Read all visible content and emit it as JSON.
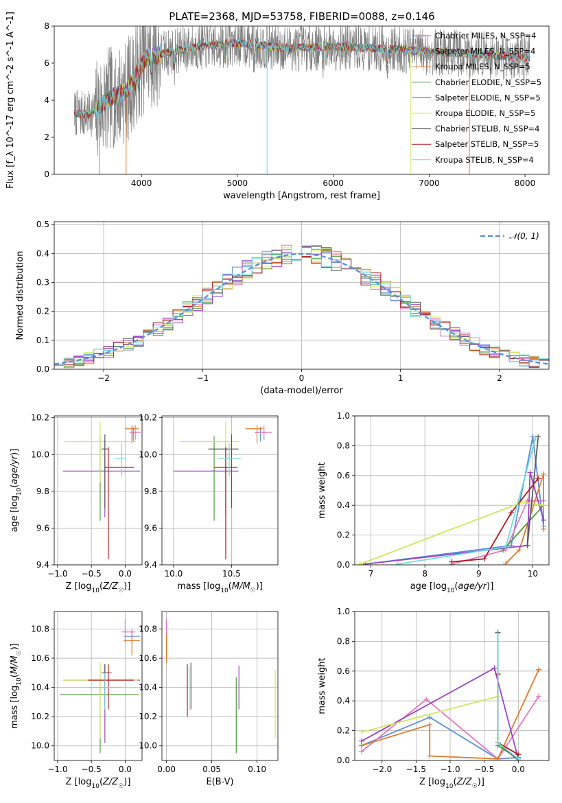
{
  "figure_title": "PLATE=2368, MJD=53758, FIBERID=0088, z=0.146",
  "colors": {
    "Chabrier MILES": "#5b8fd9",
    "Salpeter MILES": "#e377c2",
    "Kroupa MILES": "#e07b2a",
    "Chabrier ELODIE": "#4c9a3b",
    "Salpeter ELODIE": "#9b44c2",
    "Kroupa ELODIE": "#cfe85a",
    "Chabrier STELIB": "#595959",
    "Salpeter STELIB": "#b3151b",
    "Kroupa STELIB": "#6fd8dc"
  },
  "chart_data": [
    {
      "id": "spectrum",
      "type": "line",
      "title": "PLATE=2368, MJD=53758, FIBERID=0088, z=0.146",
      "xlabel": "wavelength [Angstrom, rest frame]",
      "ylabel": "Flux [f_λ 10^-17 erg cm^-2 s^-1 A^-1]",
      "xlim": [
        3090,
        8250
      ],
      "ylim": [
        0,
        8
      ],
      "xticks": [
        4000,
        5000,
        6000,
        7000,
        8000
      ],
      "yticks": [
        0,
        2,
        4,
        6,
        8
      ],
      "data_color": "#7f7f7f",
      "continuum": [
        [
          3300,
          3.3
        ],
        [
          3450,
          3.2
        ],
        [
          3550,
          3.6
        ],
        [
          3700,
          4.2
        ],
        [
          3850,
          4.5
        ],
        [
          3950,
          5.5
        ],
        [
          4050,
          6.3
        ],
        [
          4300,
          6.6
        ],
        [
          4600,
          6.9
        ],
        [
          5000,
          7.1
        ],
        [
          5500,
          6.8
        ],
        [
          6000,
          6.9
        ],
        [
          6500,
          6.8
        ],
        [
          7000,
          6.6
        ],
        [
          7500,
          6.5
        ],
        [
          8000,
          6.3
        ]
      ],
      "legend": [
        {
          "label": "Chabrier MILES, N_SSP=4",
          "model": "Chabrier MILES"
        },
        {
          "label": "Salpeter MILES, N_SSP=4",
          "model": "Salpeter MILES"
        },
        {
          "label": "Kroupa MILES, N_SSP=5",
          "model": "Kroupa MILES"
        },
        {
          "label": "Chabrier ELODIE, N_SSP=5",
          "model": "Chabrier ELODIE"
        },
        {
          "label": "Salpeter ELODIE, N_SSP=5",
          "model": "Salpeter ELODIE"
        },
        {
          "label": "Kroupa ELODIE, N_SSP=5",
          "model": "Kroupa ELODIE"
        },
        {
          "label": "Chabrier STELIB, N_SSP=4",
          "model": "Chabrier STELIB"
        },
        {
          "label": "Salpeter STELIB, N_SSP=5",
          "model": "Salpeter STELIB"
        },
        {
          "label": "Kroupa STELIB, N_SSP=4",
          "model": "Kroupa STELIB"
        }
      ],
      "legend_position": "right"
    },
    {
      "id": "residuals",
      "type": "line",
      "xlabel": "(data-model)/error",
      "ylabel": "Normed distribution",
      "xlim": [
        -2.5,
        2.5
      ],
      "ylim": [
        0,
        0.51
      ],
      "xticks": [
        -2,
        -1,
        0,
        1,
        2
      ],
      "yticks": [
        0.0,
        0.1,
        0.2,
        0.3,
        0.4,
        0.5
      ],
      "bin_width": 0.1,
      "reference_curve": {
        "label": "𝒩(0, 1)",
        "color": "#5b8fd9",
        "style": "dashed"
      },
      "legend_position": "top-right",
      "grid": true
    },
    {
      "id": "age_vs_Z",
      "type": "scatter",
      "xlabel": "Z [log10(Z/Z☉)]",
      "ylabel": "age [log10(age/yr)]",
      "xlim": [
        -1.05,
        0.25
      ],
      "ylim": [
        9.4,
        10.21
      ],
      "xticks": [
        -1.0,
        -0.5,
        0.0
      ],
      "yticks": [
        9.4,
        9.6,
        9.8,
        10.0,
        10.2
      ],
      "grid": true,
      "error_crosses": [
        {
          "model": "Chabrier MILES",
          "x": 0.12,
          "xerr": [
            0.05,
            0.05
          ],
          "y": 10.12,
          "yerr": [
            0.05,
            0.03
          ]
        },
        {
          "model": "Salpeter MILES",
          "x": 0.15,
          "xerr": [
            0.08,
            0.08
          ],
          "y": 10.12,
          "yerr": [
            0.04,
            0.04
          ]
        },
        {
          "model": "Kroupa MILES",
          "x": 0.1,
          "xerr": [
            0.1,
            0.1
          ],
          "y": 10.14,
          "yerr": [
            0.08,
            0.02
          ]
        },
        {
          "model": "Chabrier ELODIE",
          "x": -0.37,
          "xerr": [
            0.03,
            0.03
          ],
          "y": 9.91,
          "yerr": [
            0.27,
            0.19
          ]
        },
        {
          "model": "Salpeter ELODIE",
          "x": -0.3,
          "xerr": [
            0.62,
            0.52
          ],
          "y": 9.91,
          "yerr": [
            0.25,
            0.17
          ]
        },
        {
          "model": "Kroupa ELODIE",
          "x": -0.37,
          "xerr": [
            0.53,
            0.53
          ],
          "y": 10.07,
          "yerr": [
            0.22,
            0.11
          ]
        },
        {
          "model": "Chabrier STELIB",
          "x": -0.3,
          "xerr": [
            0.05,
            0.05
          ],
          "y": 10.03,
          "yerr": [
            0.32,
            0.08
          ]
        },
        {
          "model": "Salpeter STELIB",
          "x": -0.25,
          "xerr": [
            0.05,
            0.38
          ],
          "y": 9.93,
          "yerr": [
            0.5,
            0.11
          ]
        },
        {
          "model": "Kroupa STELIB",
          "x": -0.05,
          "xerr": [
            0.1,
            0.05
          ],
          "y": 9.98,
          "yerr": [
            0.1,
            0.08
          ]
        }
      ]
    },
    {
      "id": "age_vs_mass",
      "type": "scatter",
      "xlabel": "mass [log10(M/M☉)]",
      "ylabel": "",
      "xlim": [
        9.9,
        10.9
      ],
      "ylim": [
        9.4,
        10.21
      ],
      "xticks": [
        10.0,
        10.5
      ],
      "yticks": [
        9.4,
        9.6,
        9.8,
        10.0,
        10.2
      ],
      "grid": true,
      "error_crosses": [
        {
          "model": "Chabrier MILES",
          "x": 10.75,
          "xerr": [
            0.05,
            0.05
          ],
          "y": 10.12,
          "yerr": [
            0.05,
            0.03
          ]
        },
        {
          "model": "Salpeter MILES",
          "x": 10.78,
          "xerr": [
            0.07,
            0.07
          ],
          "y": 10.12,
          "yerr": [
            0.04,
            0.04
          ]
        },
        {
          "model": "Kroupa MILES",
          "x": 10.72,
          "xerr": [
            0.1,
            0.05
          ],
          "y": 10.14,
          "yerr": [
            0.08,
            0.02
          ]
        },
        {
          "model": "Chabrier ELODIE",
          "x": 10.35,
          "xerr": [
            0.03,
            0.03
          ],
          "y": 9.91,
          "yerr": [
            0.27,
            0.19
          ]
        },
        {
          "model": "Salpeter ELODIE",
          "x": 10.45,
          "xerr": [
            0.45,
            0.11
          ],
          "y": 9.91,
          "yerr": [
            0.25,
            0.17
          ]
        },
        {
          "model": "Kroupa ELODIE",
          "x": 10.45,
          "xerr": [
            0.4,
            0.12
          ],
          "y": 10.07,
          "yerr": [
            0.22,
            0.11
          ]
        },
        {
          "model": "Chabrier STELIB",
          "x": 10.5,
          "xerr": [
            0.2,
            0.06
          ],
          "y": 10.03,
          "yerr": [
            0.32,
            0.08
          ]
        },
        {
          "model": "Salpeter STELIB",
          "x": 10.45,
          "xerr": [
            0.1,
            0.1
          ],
          "y": 9.93,
          "yerr": [
            0.5,
            0.11
          ]
        },
        {
          "model": "Kroupa STELIB",
          "x": 10.48,
          "xerr": [
            0.1,
            0.1
          ],
          "y": 9.98,
          "yerr": [
            0.1,
            0.08
          ]
        }
      ]
    },
    {
      "id": "weight_vs_age",
      "type": "line",
      "xlabel": "age [log10(age/yr)]",
      "ylabel": "mass weight",
      "xlim": [
        6.7,
        10.3
      ],
      "ylim": [
        0,
        1.0
      ],
      "xticks": [
        7,
        8,
        9,
        10
      ],
      "yticks": [
        0.0,
        0.2,
        0.4,
        0.6,
        0.8,
        1.0
      ],
      "grid": true,
      "series": [
        {
          "model": "Chabrier MILES",
          "x": [
            6.9,
            9.6,
            10.0,
            10.2
          ],
          "y": [
            0.005,
            0.13,
            0.86,
            0.26
          ]
        },
        {
          "model": "Salpeter MILES",
          "x": [
            8.5,
            9.5,
            9.9,
            10.2
          ],
          "y": [
            0.005,
            0.1,
            0.43,
            0.43
          ]
        },
        {
          "model": "Kroupa MILES",
          "x": [
            9.5,
            9.75,
            10.2,
            10.2
          ],
          "y": [
            0.01,
            0.1,
            0.61,
            0.24
          ]
        },
        {
          "model": "Chabrier ELODIE",
          "x": [
            9.45,
            10.2
          ],
          "y": [
            0.1,
            0.4
          ]
        },
        {
          "model": "Salpeter ELODIE",
          "x": [
            6.9,
            9.9,
            9.95,
            10.2
          ],
          "y": [
            0.005,
            0.13,
            0.62,
            0.3
          ]
        },
        {
          "model": "Kroupa ELODIE",
          "x": [
            6.8,
            9.8,
            10.2
          ],
          "y": [
            0.005,
            0.42,
            0.4
          ]
        },
        {
          "model": "Chabrier STELIB",
          "x": [
            9.9,
            10.1
          ],
          "y": [
            0.13,
            0.86
          ]
        },
        {
          "model": "Salpeter STELIB",
          "x": [
            8.5,
            9.1,
            9.6,
            10.1
          ],
          "y": [
            0.02,
            0.04,
            0.35,
            0.58
          ]
        },
        {
          "model": "Kroupa STELIB",
          "x": [
            7.5,
            9.5,
            10.05
          ],
          "y": [
            0.005,
            0.12,
            0.85
          ]
        }
      ]
    },
    {
      "id": "mass_vs_Z",
      "type": "scatter",
      "xlabel": "Z [log10(Z/Z☉)]",
      "ylabel": "mass [log10(M/M☉)]",
      "xlim": [
        -1.05,
        0.25
      ],
      "ylim": [
        9.9,
        10.92
      ],
      "xticks": [
        -1.0,
        -0.5,
        0.0
      ],
      "yticks": [
        10.0,
        10.2,
        10.4,
        10.6,
        10.8
      ],
      "grid": true,
      "error_crosses": [
        {
          "model": "Chabrier MILES",
          "x": 0.1,
          "xerr": [
            0.12,
            0.12
          ],
          "y": 10.75,
          "yerr": [
            0.05,
            0.05
          ]
        },
        {
          "model": "Salpeter MILES",
          "x": 0.0,
          "xerr": [
            0.05,
            0.15
          ],
          "y": 10.78,
          "yerr": [
            0.07,
            0.09
          ]
        },
        {
          "model": "Kroupa MILES",
          "x": 0.1,
          "xerr": [
            0.12,
            0.12
          ],
          "y": 10.72,
          "yerr": [
            0.1,
            0.05
          ]
        },
        {
          "model": "Chabrier ELODIE",
          "x": -0.37,
          "xerr": [
            0.6,
            0.57
          ],
          "y": 10.35,
          "yerr": [
            0.4,
            0.1
          ]
        },
        {
          "model": "Salpeter ELODIE",
          "x": -0.3,
          "xerr": [
            0.62,
            0.52
          ],
          "y": 10.45,
          "yerr": [
            0.43,
            0.11
          ]
        },
        {
          "model": "Kroupa ELODIE",
          "x": -0.37,
          "xerr": [
            0.55,
            0.55
          ],
          "y": 10.45,
          "yerr": [
            0.4,
            0.12
          ]
        },
        {
          "model": "Chabrier STELIB",
          "x": -0.3,
          "xerr": [
            0.05,
            0.1
          ],
          "y": 10.5,
          "yerr": [
            0.22,
            0.06
          ]
        },
        {
          "model": "Salpeter STELIB",
          "x": -0.25,
          "xerr": [
            0.3,
            0.38
          ],
          "y": 10.45,
          "yerr": [
            0.2,
            0.11
          ]
        },
        {
          "model": "Kroupa STELIB",
          "x": -0.3,
          "xerr": [
            0.25,
            0.25
          ],
          "y": 10.4,
          "yerr": [
            0.15,
            0.1
          ]
        }
      ]
    },
    {
      "id": "mass_vs_ebv",
      "type": "scatter",
      "xlabel": "E(B-V)",
      "ylabel": "",
      "xlim": [
        -0.005,
        0.123
      ],
      "ylim": [
        9.9,
        10.92
      ],
      "xticks": [
        0.0,
        0.05,
        0.1
      ],
      "yticks": [
        10.0,
        10.2,
        10.4,
        10.6,
        10.8
      ],
      "grid": true,
      "error_bars": [
        {
          "model": "Salpeter MILES",
          "x": 0.0,
          "y": 10.78,
          "yerr": [
            0.07,
            0.09
          ]
        },
        {
          "model": "Kroupa MILES",
          "x": 0.0,
          "y": 10.72,
          "yerr": [
            0.15,
            0.05
          ]
        },
        {
          "model": "Chabrier ELODIE",
          "x": 0.077,
          "y": 10.35,
          "yerr": [
            0.4,
            0.12
          ]
        },
        {
          "model": "Salpeter ELODIE",
          "x": 0.08,
          "y": 10.45,
          "yerr": [
            0.2,
            0.1
          ]
        },
        {
          "model": "Kroupa ELODIE",
          "x": 0.12,
          "y": 10.3,
          "yerr": [
            0.25,
            0.22
          ]
        },
        {
          "model": "Chabrier STELIB",
          "x": 0.027,
          "y": 10.45,
          "yerr": [
            0.2,
            0.12
          ]
        },
        {
          "model": "Salpeter STELIB",
          "x": 0.023,
          "y": 10.4,
          "yerr": [
            0.2,
            0.16
          ]
        },
        {
          "model": "Kroupa STELIB",
          "x": 0.025,
          "y": 10.42,
          "yerr": [
            0.18,
            0.12
          ]
        }
      ]
    },
    {
      "id": "weight_vs_Z",
      "type": "line",
      "xlabel": "Z [log10(Z/Z☉)]",
      "ylabel": "mass weight",
      "xlim": [
        -2.4,
        0.45
      ],
      "ylim": [
        0,
        1.0
      ],
      "xticks": [
        -2.0,
        -1.5,
        -1.0,
        -0.5,
        0.0
      ],
      "yticks": [
        0.0,
        0.2,
        0.4,
        0.6,
        0.8,
        1.0
      ],
      "grid": true,
      "series": [
        {
          "model": "Chabrier MILES",
          "x": [
            -2.3,
            -1.3,
            -0.3,
            0.0
          ],
          "y": [
            0.1,
            0.29,
            0.01,
            0.02
          ]
        },
        {
          "model": "Salpeter MILES",
          "x": [
            -2.3,
            -1.35,
            -0.3,
            0.3
          ],
          "y": [
            0.06,
            0.41,
            0.01,
            0.43
          ]
        },
        {
          "model": "Kroupa MILES",
          "x": [
            -2.3,
            -1.3,
            -1.3,
            -0.3,
            0.3
          ],
          "y": [
            0.1,
            0.24,
            0.03,
            0.01,
            0.61
          ]
        },
        {
          "model": "Chabrier ELODIE",
          "x": [
            -0.3,
            0.0
          ],
          "y": [
            0.1,
            0.01
          ]
        },
        {
          "model": "Salpeter ELODIE",
          "x": [
            -2.3,
            -0.35,
            0.0
          ],
          "y": [
            0.13,
            0.62,
            0.01
          ]
        },
        {
          "model": "Kroupa ELODIE",
          "x": [
            -2.3,
            -0.3,
            -0.3
          ],
          "y": [
            0.19,
            0.43,
            0.15
          ]
        },
        {
          "model": "Chabrier STELIB",
          "x": [
            -0.3,
            -0.3,
            0.0
          ],
          "y": [
            0.86,
            0.12,
            0.0
          ]
        },
        {
          "model": "Salpeter STELIB",
          "x": [
            -0.3,
            -0.3,
            0.0
          ],
          "y": [
            0.58,
            0.12,
            0.04
          ]
        },
        {
          "model": "Kroupa STELIB",
          "x": [
            -0.3,
            -0.3,
            0.0
          ],
          "y": [
            0.85,
            0.12,
            0.01
          ]
        }
      ]
    }
  ]
}
